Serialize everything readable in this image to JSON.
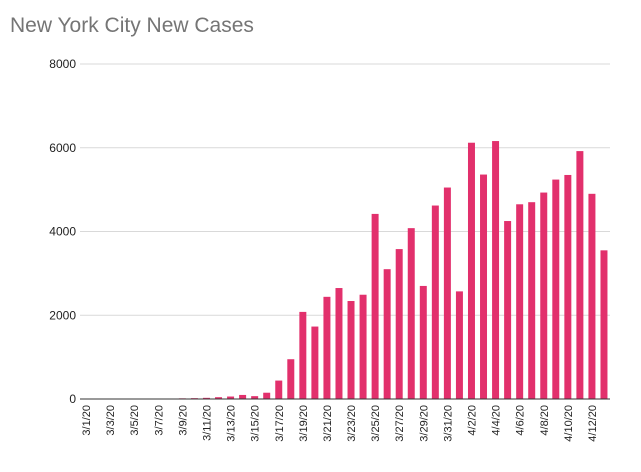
{
  "chart_data": {
    "type": "bar",
    "title": "New York City New Cases",
    "xlabel": "",
    "ylabel": "",
    "ylim": [
      0,
      8000
    ],
    "yticks": [
      0,
      2000,
      4000,
      6000,
      8000
    ],
    "grid": true,
    "bar_color": "#e2306c",
    "categories": [
      "3/1/20",
      "3/2/20",
      "3/3/20",
      "3/4/20",
      "3/5/20",
      "3/6/20",
      "3/7/20",
      "3/8/20",
      "3/9/20",
      "3/10/20",
      "3/11/20",
      "3/12/20",
      "3/13/20",
      "3/14/20",
      "3/15/20",
      "3/16/20",
      "3/17/20",
      "3/18/20",
      "3/19/20",
      "3/20/20",
      "3/21/20",
      "3/22/20",
      "3/23/20",
      "3/24/20",
      "3/25/20",
      "3/26/20",
      "3/27/20",
      "3/28/20",
      "3/29/20",
      "3/30/20",
      "3/31/20",
      "4/1/20",
      "4/2/20",
      "4/3/20",
      "4/4/20",
      "4/5/20",
      "4/6/20",
      "4/7/20",
      "4/8/20",
      "4/9/20",
      "4/10/20",
      "4/11/20",
      "4/12/20",
      "4/13/20"
    ],
    "tick_labels": [
      "3/1/20",
      "3/3/20",
      "3/5/20",
      "3/7/20",
      "3/9/20",
      "3/11/20",
      "3/13/20",
      "3/15/20",
      "3/17/20",
      "3/19/20",
      "3/21/20",
      "3/23/20",
      "3/25/20",
      "3/27/20",
      "3/29/20",
      "3/31/20",
      "4/2/20",
      "4/4/20",
      "4/6/20",
      "4/8/20",
      "4/10/20",
      "4/12/20"
    ],
    "values": [
      1,
      0,
      1,
      0,
      3,
      8,
      5,
      1,
      16,
      20,
      28,
      43,
      59,
      97,
      68,
      150,
      440,
      950,
      2080,
      1730,
      2440,
      2650,
      2340,
      2490,
      4420,
      3100,
      3580,
      4080,
      2700,
      4620,
      5050,
      2570,
      6120,
      5360,
      6160,
      4250,
      4650,
      4700,
      4930,
      5240,
      5350,
      5920,
      4900,
      3550
    ]
  }
}
